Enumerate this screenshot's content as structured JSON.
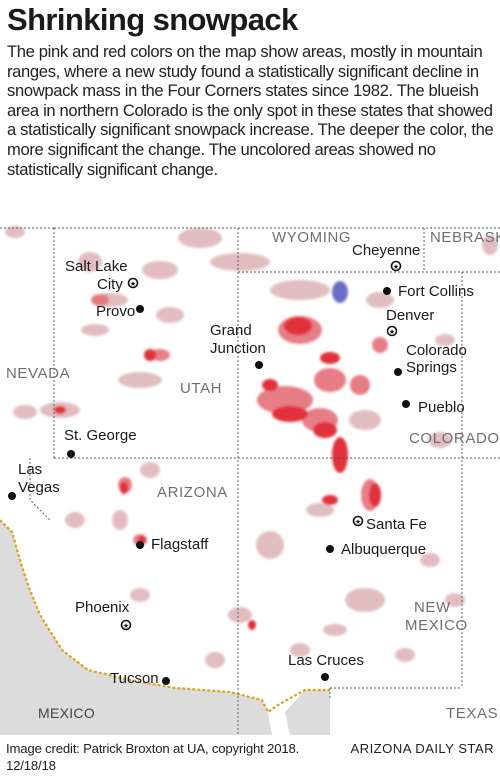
{
  "title": "Shrinking snowpack",
  "intro": "The pink and red colors on the map show areas, mostly in mountain ranges, where a new study found a statistically significant decline in snowpack mass in the Four Corners states since 1982. The blueish area in northern Colorado is the only spot in these states that showed a statistically significant snowpack increase. The deeper the color, the more significant the change. The uncolored areas showed no statistically significant change.",
  "map": {
    "states": [
      "WYOMING",
      "NEBRASKA",
      "NEVADA",
      "UTAH",
      "COLORADO",
      "ARIZONA",
      "NEW",
      "MEXICO",
      "TEXAS"
    ],
    "countries": [
      "MEXICO"
    ],
    "cities": {
      "salt_lake_line1": "Salt Lake",
      "salt_lake_line2": "City",
      "provo": "Provo",
      "grand_junction_line1": "Grand",
      "grand_junction_line2": "Junction",
      "st_george": "St. George",
      "las_vegas_line1": "Las",
      "las_vegas_line2": "Vegas",
      "flagstaff": "Flagstaff",
      "phoenix": "Phoenix",
      "tucson": "Tucson",
      "cheyenne": "Cheyenne",
      "fort_collins": "Fort Collins",
      "denver": "Denver",
      "colorado_springs_line1": "Colorado",
      "colorado_springs_line2": "Springs",
      "pueblo": "Pueblo",
      "santa_fe": "Santa Fe",
      "albuquerque": "Albuquerque",
      "las_cruces": "Las Cruces"
    },
    "colors": {
      "decline_deep": "#e0303a",
      "decline_mid": "#e8707a",
      "decline_light": "#d8a8ac",
      "increase": "#6a6ec8",
      "mexico_fill": "#dcdcdc",
      "border_gold": "#d9a520"
    }
  },
  "footer": {
    "credit_line1": "Image credit: Patrick Broxton at UA, copyright 2018.",
    "credit_line2": "12/18/18",
    "publisher": "ARIZONA DAILY STAR"
  }
}
